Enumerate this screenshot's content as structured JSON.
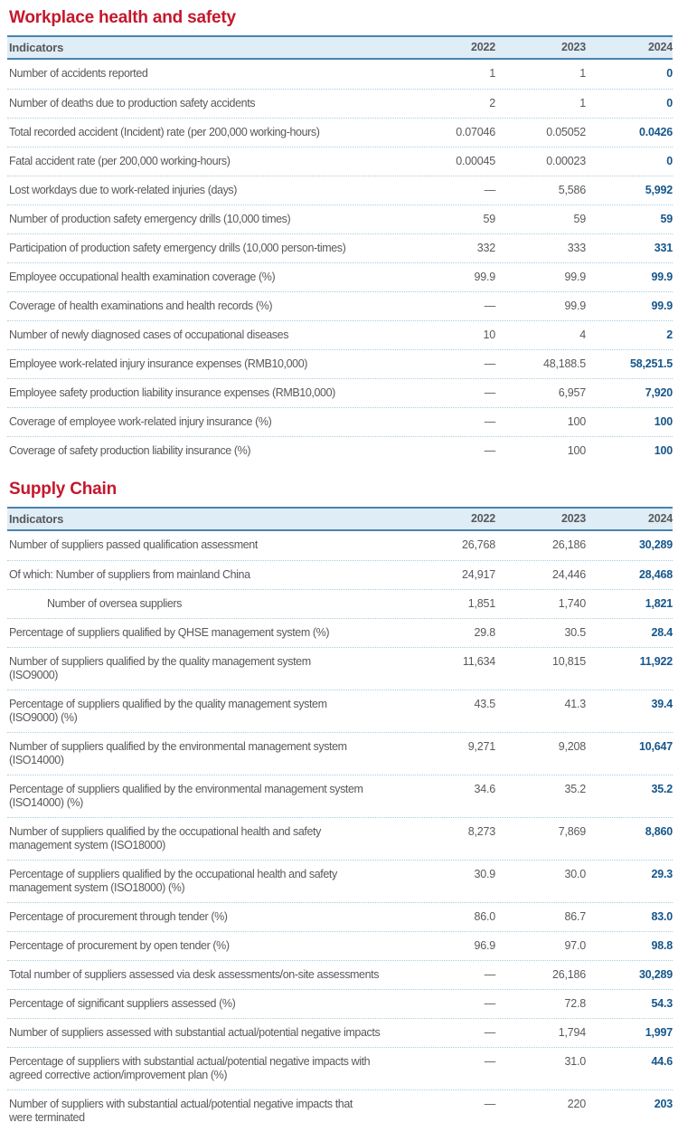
{
  "colors": {
    "title_red": "#C5172C",
    "header_text_blue": "#2E6FA0",
    "header_bg_blue": "#DFEDF7",
    "rule_blue": "#4A84AD",
    "dotted_separator_blue": "#A9CEDF",
    "body_text_gray": "#58595B",
    "latest_year_blue": "#15568C"
  },
  "sections": [
    {
      "title": "Workplace health and safety",
      "columns": [
        "Indicators",
        "2022",
        "2023",
        "2024"
      ],
      "rows": [
        {
          "label": "Number of accidents reported",
          "values": [
            "1",
            "1",
            "0"
          ]
        },
        {
          "label": "Number of deaths due to production safety accidents",
          "values": [
            "2",
            "1",
            "0"
          ]
        },
        {
          "label": "Total recorded accident (Incident) rate (per 200,000 working-hours)",
          "values": [
            "0.07046",
            "0.05052",
            "0.0426"
          ]
        },
        {
          "label": "Fatal accident rate (per 200,000 working-hours)",
          "values": [
            "0.00045",
            "0.00023",
            "0"
          ]
        },
        {
          "label": "Lost workdays due to work-related injuries (days)",
          "values": [
            "—",
            "5,586",
            "5,992"
          ]
        },
        {
          "label": "Number of production safety emergency drills (10,000 times)",
          "values": [
            "59",
            "59",
            "59"
          ]
        },
        {
          "label": "Participation of production safety emergency drills (10,000 person-times)",
          "values": [
            "332",
            "333",
            "331"
          ]
        },
        {
          "label": "Employee occupational health examination coverage (%)",
          "values": [
            "99.9",
            "99.9",
            "99.9"
          ]
        },
        {
          "label": "Coverage of health examinations and health records (%)",
          "values": [
            "—",
            "99.9",
            "99.9"
          ]
        },
        {
          "label": "Number of newly diagnosed cases of occupational diseases",
          "values": [
            "10",
            "4",
            "2"
          ]
        },
        {
          "label": "Employee work-related injury insurance expenses (RMB10,000)",
          "values": [
            "—",
            "48,188.5",
            "58,251.5"
          ]
        },
        {
          "label": "Employee safety production liability insurance expenses (RMB10,000)",
          "values": [
            "—",
            "6,957",
            "7,920"
          ]
        },
        {
          "label": "Coverage of employee work-related injury insurance (%)",
          "values": [
            "—",
            "100",
            "100"
          ]
        },
        {
          "label": "Coverage of safety production liability insurance (%)",
          "values": [
            "—",
            "100",
            "100"
          ]
        }
      ]
    },
    {
      "title": "Supply Chain",
      "columns": [
        "Indicators",
        "2022",
        "2023",
        "2024"
      ],
      "rows": [
        {
          "label": "Number of suppliers passed qualification assessment",
          "values": [
            "26,768",
            "26,186",
            "30,289"
          ]
        },
        {
          "label": "Of which: Number of suppliers from mainland China",
          "values": [
            "24,917",
            "24,446",
            "28,468"
          ]
        },
        {
          "label": "Number of oversea suppliers",
          "indent": true,
          "values": [
            "1,851",
            "1,740",
            "1,821"
          ]
        },
        {
          "label": "Percentage of suppliers qualified by QHSE management system (%)",
          "values": [
            "29.8",
            "30.5",
            "28.4"
          ]
        },
        {
          "label": "Number of suppliers qualified by the quality management system\n(ISO9000)",
          "values": [
            "11,634",
            "10,815",
            "11,922"
          ]
        },
        {
          "label": "Percentage of suppliers qualified by the quality management system\n(ISO9000) (%)",
          "values": [
            "43.5",
            "41.3",
            "39.4"
          ]
        },
        {
          "label": "Number of suppliers qualified by the environmental management system\n(ISO14000)",
          "values": [
            "9,271",
            "9,208",
            "10,647"
          ]
        },
        {
          "label": "Percentage of suppliers qualified by the environmental management system\n(ISO14000) (%)",
          "values": [
            "34.6",
            "35.2",
            "35.2"
          ]
        },
        {
          "label": "Number of suppliers qualified by the occupational health and safety\nmanagement system (ISO18000)",
          "values": [
            "8,273",
            "7,869",
            "8,860"
          ]
        },
        {
          "label": "Percentage of suppliers qualified by the occupational health and safety\nmanagement system (ISO18000) (%)",
          "values": [
            "30.9",
            "30.0",
            "29.3"
          ]
        },
        {
          "label": "Percentage of procurement through tender (%)",
          "values": [
            "86.0",
            "86.7",
            "83.0"
          ]
        },
        {
          "label": "Percentage of procurement by open tender (%)",
          "values": [
            "96.9",
            "97.0",
            "98.8"
          ]
        },
        {
          "label": "Total number of suppliers assessed via desk assessments/on-site assessments",
          "values": [
            "—",
            "26,186",
            "30,289"
          ]
        },
        {
          "label": "Percentage of significant suppliers assessed (%)",
          "values": [
            "—",
            "72.8",
            "54.3"
          ]
        },
        {
          "label": "Number of suppliers assessed with substantial actual/potential negative impacts",
          "values": [
            "—",
            "1,794",
            "1,997"
          ]
        },
        {
          "label": "Percentage of suppliers with substantial actual/potential negative impacts with\nagreed corrective action/improvement plan (%)",
          "values": [
            "—",
            "31.0",
            "44.6"
          ]
        },
        {
          "label": "Number of suppliers with substantial actual/potential negative impacts that\nwere terminated",
          "values": [
            "—",
            "220",
            "203"
          ]
        }
      ]
    }
  ]
}
